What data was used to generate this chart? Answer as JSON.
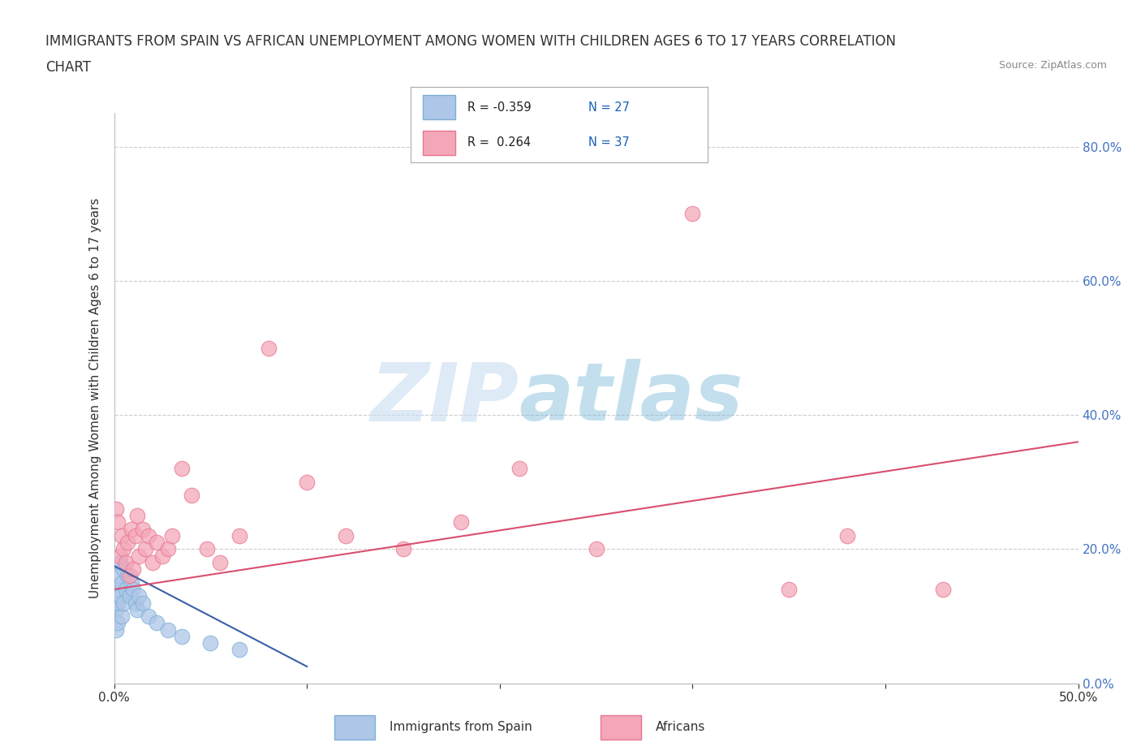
{
  "title_line1": "IMMIGRANTS FROM SPAIN VS AFRICAN UNEMPLOYMENT AMONG WOMEN WITH CHILDREN AGES 6 TO 17 YEARS CORRELATION",
  "title_line2": "CHART",
  "source": "Source: ZipAtlas.com",
  "ylabel": "Unemployment Among Women with Children Ages 6 to 17 years",
  "xlim": [
    0.0,
    0.5
  ],
  "ylim": [
    0.0,
    0.85
  ],
  "xticks": [
    0.0,
    0.1,
    0.2,
    0.3,
    0.4,
    0.5
  ],
  "yticks": [
    0.0,
    0.2,
    0.4,
    0.6,
    0.8
  ],
  "blue_scatter": {
    "x": [
      0.001,
      0.001,
      0.001,
      0.002,
      0.002,
      0.002,
      0.003,
      0.003,
      0.004,
      0.004,
      0.005,
      0.005,
      0.006,
      0.007,
      0.008,
      0.009,
      0.01,
      0.011,
      0.012,
      0.013,
      0.015,
      0.018,
      0.022,
      0.028,
      0.035,
      0.05,
      0.065
    ],
    "y": [
      0.14,
      0.11,
      0.08,
      0.16,
      0.12,
      0.09,
      0.18,
      0.13,
      0.15,
      0.1,
      0.17,
      0.12,
      0.14,
      0.16,
      0.13,
      0.15,
      0.14,
      0.12,
      0.11,
      0.13,
      0.12,
      0.1,
      0.09,
      0.08,
      0.07,
      0.06,
      0.05
    ],
    "color": "#aec6e8",
    "edge_color": "#7bafd4",
    "alpha": 0.75,
    "R": -0.359,
    "N": 27
  },
  "pink_scatter": {
    "x": [
      0.001,
      0.002,
      0.003,
      0.004,
      0.005,
      0.006,
      0.007,
      0.008,
      0.009,
      0.01,
      0.011,
      0.012,
      0.013,
      0.015,
      0.016,
      0.018,
      0.02,
      0.022,
      0.025,
      0.028,
      0.03,
      0.035,
      0.04,
      0.048,
      0.055,
      0.065,
      0.08,
      0.1,
      0.12,
      0.15,
      0.18,
      0.21,
      0.25,
      0.3,
      0.35,
      0.38,
      0.43
    ],
    "y": [
      0.26,
      0.24,
      0.19,
      0.22,
      0.2,
      0.18,
      0.21,
      0.16,
      0.23,
      0.17,
      0.22,
      0.25,
      0.19,
      0.23,
      0.2,
      0.22,
      0.18,
      0.21,
      0.19,
      0.2,
      0.22,
      0.32,
      0.28,
      0.2,
      0.18,
      0.22,
      0.5,
      0.3,
      0.22,
      0.2,
      0.24,
      0.32,
      0.2,
      0.7,
      0.14,
      0.22,
      0.14
    ],
    "color": "#f4a7b9",
    "edge_color": "#e8758f",
    "alpha": 0.75,
    "R": 0.264,
    "N": 37
  },
  "blue_trend": {
    "x_start": 0.0,
    "x_end": 0.1,
    "y_start": 0.175,
    "y_end": 0.025,
    "color": "#3a5fa8",
    "linewidth": 1.5
  },
  "pink_trend": {
    "x_start": 0.0,
    "x_end": 0.5,
    "y_start": 0.14,
    "y_end": 0.36,
    "color": "#d94f6e",
    "linewidth": 1.5
  },
  "background_color": "#ffffff",
  "grid_color": "#cccccc",
  "watermark_zip": "ZIP",
  "watermark_atlas": "atlas",
  "right_tick_color": "#4472c4",
  "legend_label_blue": "Immigrants from Spain",
  "legend_label_pink": "Africans",
  "legend_R_color": "#1a5276",
  "legend_N_color": "#1a5fb4",
  "blue_box_color": "#aec6e8",
  "blue_box_edge": "#7bafd4",
  "pink_box_color": "#f4a7b9",
  "pink_box_edge": "#e8758f"
}
